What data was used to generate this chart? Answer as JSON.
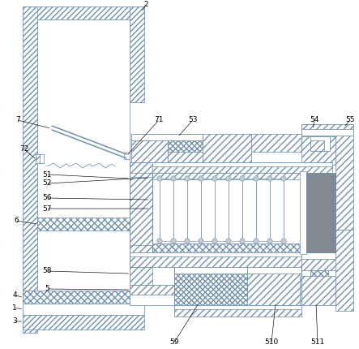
{
  "bg_color": "#ffffff",
  "line_color": "#7090b0",
  "hatch_lc": "#7090b0",
  "dark_fill": "#888888",
  "spring_fill": "#c0ccd8"
}
